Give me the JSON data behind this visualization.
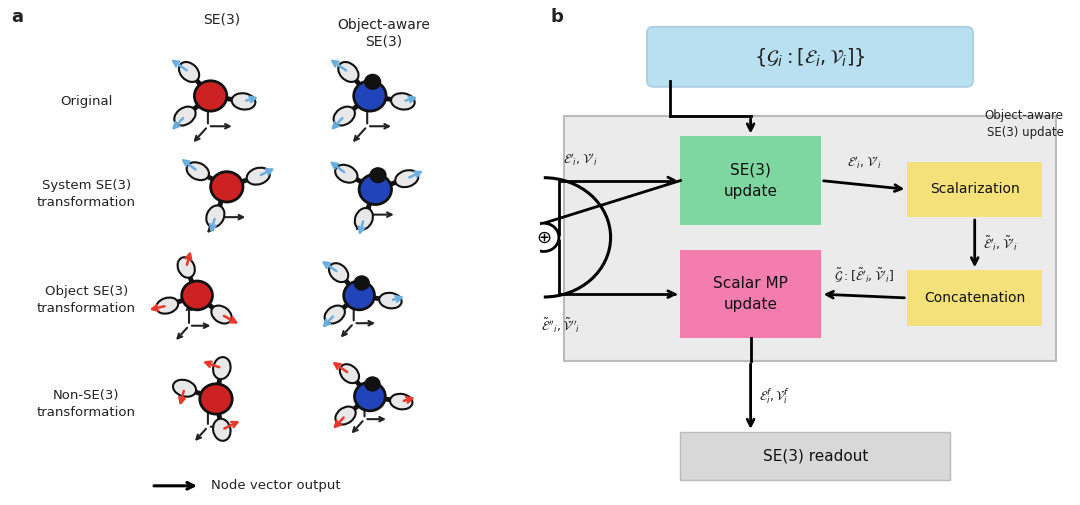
{
  "panel_a_label": "a",
  "panel_b_label": "b",
  "row_labels": [
    "Original",
    "System SE(3)\ntransformation",
    "Object SE(3)\ntransformation",
    "Non-SE(3)\ntransformation"
  ],
  "col_labels_a": [
    "SE(3)",
    "Object-aware\nSE(3)"
  ],
  "bg_color": "#ffffff",
  "green_box_color": "#7ed6a0",
  "yellow_box_color": "#f5e17a",
  "pink_box_color": "#f47db0",
  "blue_box_color": "#b8e0f0",
  "gray_box_color": "#d8d8d8",
  "outer_box_color": "#ebebeb",
  "red_arrow_color": "#e8392a",
  "blue_arrow_color": "#6aaee0",
  "axis_color": "#222222",
  "text_color": "#222222",
  "atom_red_color": "#cc2222",
  "atom_blue_color": "#2244bb",
  "atom_white_color": "#e8e8e8",
  "atom_black_color": "#111111",
  "bond_color": "#111111",
  "se3_update_text": "SE(3)\nupdate",
  "scalar_mp_text": "Scalar MP\nupdate",
  "scalarization_text": "Scalarization",
  "concatenation_text": "Concatenation",
  "readout_text": "SE(3) readout",
  "oa_label": "Object-aware\nSE(3) update"
}
